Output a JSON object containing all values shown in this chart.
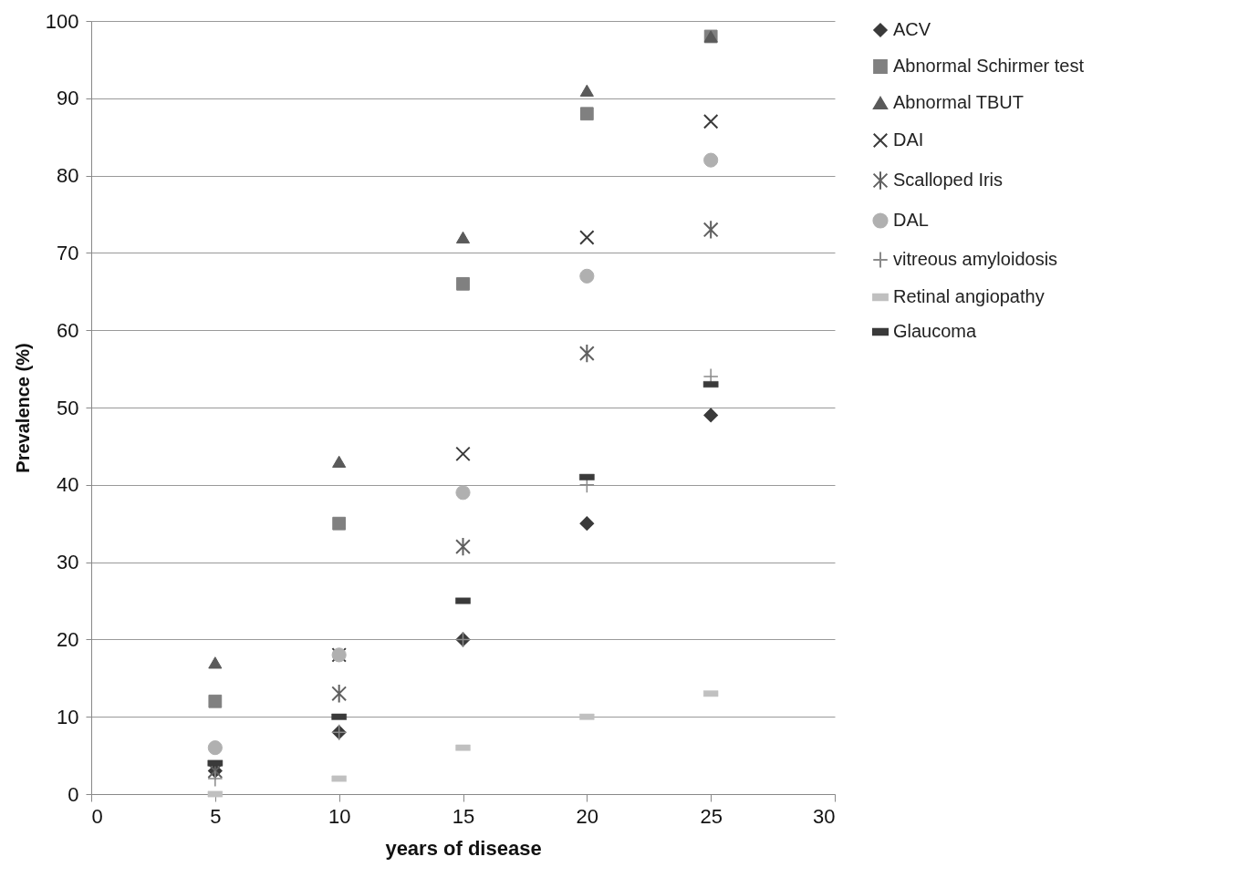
{
  "chart_data": {
    "type": "scatter",
    "xlabel": "years of disease",
    "ylabel": "Prevalence (%)",
    "x": [
      5,
      10,
      15,
      20,
      25
    ],
    "xlim": [
      0,
      30
    ],
    "xticks": [
      0,
      5,
      10,
      15,
      20,
      25,
      30
    ],
    "ylim": [
      0,
      100
    ],
    "yticks": [
      0,
      10,
      20,
      30,
      40,
      50,
      60,
      70,
      80,
      90,
      100
    ],
    "grid": "y",
    "legend": "right",
    "series": [
      {
        "name": "ACV",
        "color": "#3a3a3a",
        "marker": "diamond",
        "values": [
          3,
          8,
          20,
          35,
          49
        ]
      },
      {
        "name": "Abnormal Schirmer  test",
        "color": "#808080",
        "marker": "square",
        "values": [
          12,
          35,
          66,
          88,
          98
        ]
      },
      {
        "name": "Abnormal TBUT",
        "color": "#5a5a5a",
        "marker": "triangle",
        "values": [
          17,
          43,
          72,
          91,
          98
        ]
      },
      {
        "name": "DAI",
        "color": "#3a3a3a",
        "marker": "cross",
        "values": [
          null,
          18,
          44,
          72,
          87
        ]
      },
      {
        "name": "Scalloped Iris",
        "color": "#606060",
        "marker": "cross",
        "values": [
          3,
          13,
          32,
          57,
          73
        ]
      },
      {
        "name": "DAL",
        "color": "#b0b0b0",
        "marker": "circle",
        "values": [
          6,
          18,
          39,
          67,
          82
        ]
      },
      {
        "name": "vitreous amyloidosis",
        "color": "#8a8a8a",
        "marker": "cross",
        "values": [
          2,
          8,
          20,
          40,
          54
        ]
      },
      {
        "name": "Retinal angiopathy",
        "color": "#c0c0c0",
        "marker": "square",
        "values": [
          0,
          2,
          6,
          10,
          13
        ]
      },
      {
        "name": "Glaucoma",
        "color": "#3a3a3a",
        "marker": "square",
        "values": [
          4,
          10,
          25,
          41,
          53
        ]
      }
    ]
  }
}
